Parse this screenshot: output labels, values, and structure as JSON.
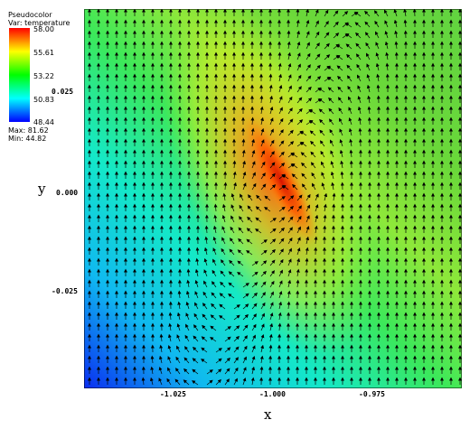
{
  "legend": {
    "plot_type": "Pseudocolor",
    "var_label": "Var: temperature",
    "colorbar_labels": [
      "58.00",
      "55.61",
      "53.22",
      "50.83",
      "48.44"
    ],
    "max_label": "Max: 81.62",
    "min_label": "Min: 44.82"
  },
  "chart_data": {
    "type": "heatmap",
    "title": "",
    "xlabel": "x",
    "ylabel": "y",
    "x_ticks": [
      "-1.025",
      "-1.000",
      "-0.975"
    ],
    "x_tick_values": [
      -1.025,
      -1.0,
      -0.975
    ],
    "y_ticks": [
      "0.025",
      "0.000",
      "-0.025"
    ],
    "y_tick_values": [
      0.025,
      0.0,
      -0.025
    ],
    "xlim": [
      -1.04,
      -0.963
    ],
    "ylim": [
      -0.043,
      0.04
    ],
    "variable": "temperature",
    "color_min": 48.44,
    "color_max": 58.0,
    "data_min": 44.82,
    "data_max": 81.62,
    "colormap": [
      "#0000ff",
      "#00ffff",
      "#00ff00",
      "#ffff00",
      "#ff0000"
    ],
    "overlay": "vector arrows"
  }
}
